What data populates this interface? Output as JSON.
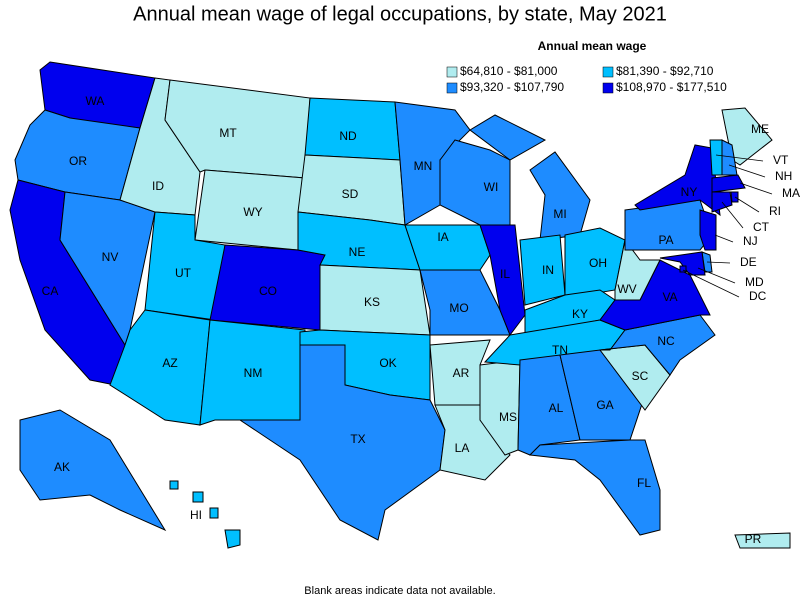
{
  "title": "Annual mean wage of legal occupations, by state, May 2021",
  "legend": {
    "title": "Annual mean wage",
    "items": [
      {
        "label": "$64,810 - $81,000",
        "color": "#b0ecef"
      },
      {
        "label": "$81,390 - $92,710",
        "color": "#00bfff"
      },
      {
        "label": "$93,320 - $107,790",
        "color": "#1e8cff"
      },
      {
        "label": "$108,970 - $177,510",
        "color": "#0000ee"
      }
    ]
  },
  "states": [
    {
      "abbr": "WA",
      "class": 3
    },
    {
      "abbr": "OR",
      "class": 2
    },
    {
      "abbr": "CA",
      "class": 3
    },
    {
      "abbr": "NV",
      "class": 2
    },
    {
      "abbr": "ID",
      "class": 0
    },
    {
      "abbr": "MT",
      "class": 0
    },
    {
      "abbr": "WY",
      "class": 0
    },
    {
      "abbr": "UT",
      "class": 1
    },
    {
      "abbr": "AZ",
      "class": 1
    },
    {
      "abbr": "CO",
      "class": 3
    },
    {
      "abbr": "NM",
      "class": 1
    },
    {
      "abbr": "ND",
      "class": 1
    },
    {
      "abbr": "SD",
      "class": 0
    },
    {
      "abbr": "NE",
      "class": 1
    },
    {
      "abbr": "KS",
      "class": 0
    },
    {
      "abbr": "OK",
      "class": 1
    },
    {
      "abbr": "TX",
      "class": 2
    },
    {
      "abbr": "MN",
      "class": 2
    },
    {
      "abbr": "IA",
      "class": 1
    },
    {
      "abbr": "MO",
      "class": 2
    },
    {
      "abbr": "AR",
      "class": 0
    },
    {
      "abbr": "LA",
      "class": 0
    },
    {
      "abbr": "WI",
      "class": 2
    },
    {
      "abbr": "IL",
      "class": 3
    },
    {
      "abbr": "MS",
      "class": 0
    },
    {
      "abbr": "MI",
      "class": 2
    },
    {
      "abbr": "IN",
      "class": 1
    },
    {
      "abbr": "OH",
      "class": 1
    },
    {
      "abbr": "KY",
      "class": 1
    },
    {
      "abbr": "TN",
      "class": 1
    },
    {
      "abbr": "AL",
      "class": 2
    },
    {
      "abbr": "GA",
      "class": 2
    },
    {
      "abbr": "FL",
      "class": 2
    },
    {
      "abbr": "SC",
      "class": 0
    },
    {
      "abbr": "NC",
      "class": 2
    },
    {
      "abbr": "VA",
      "class": 3
    },
    {
      "abbr": "WV",
      "class": 0
    },
    {
      "abbr": "PA",
      "class": 2
    },
    {
      "abbr": "NY",
      "class": 3
    },
    {
      "abbr": "ME",
      "class": 0
    },
    {
      "abbr": "VT",
      "class": 1
    },
    {
      "abbr": "NH",
      "class": 2
    },
    {
      "abbr": "MA",
      "class": 3
    },
    {
      "abbr": "RI",
      "class": 3
    },
    {
      "abbr": "CT",
      "class": 3
    },
    {
      "abbr": "NJ",
      "class": 3
    },
    {
      "abbr": "DE",
      "class": 2
    },
    {
      "abbr": "MD",
      "class": 3
    },
    {
      "abbr": "DC",
      "class": 3
    },
    {
      "abbr": "AK",
      "class": 2
    },
    {
      "abbr": "HI",
      "class": 1
    },
    {
      "abbr": "PR",
      "class": 0
    }
  ],
  "footnote": "Blank areas indicate data not available."
}
